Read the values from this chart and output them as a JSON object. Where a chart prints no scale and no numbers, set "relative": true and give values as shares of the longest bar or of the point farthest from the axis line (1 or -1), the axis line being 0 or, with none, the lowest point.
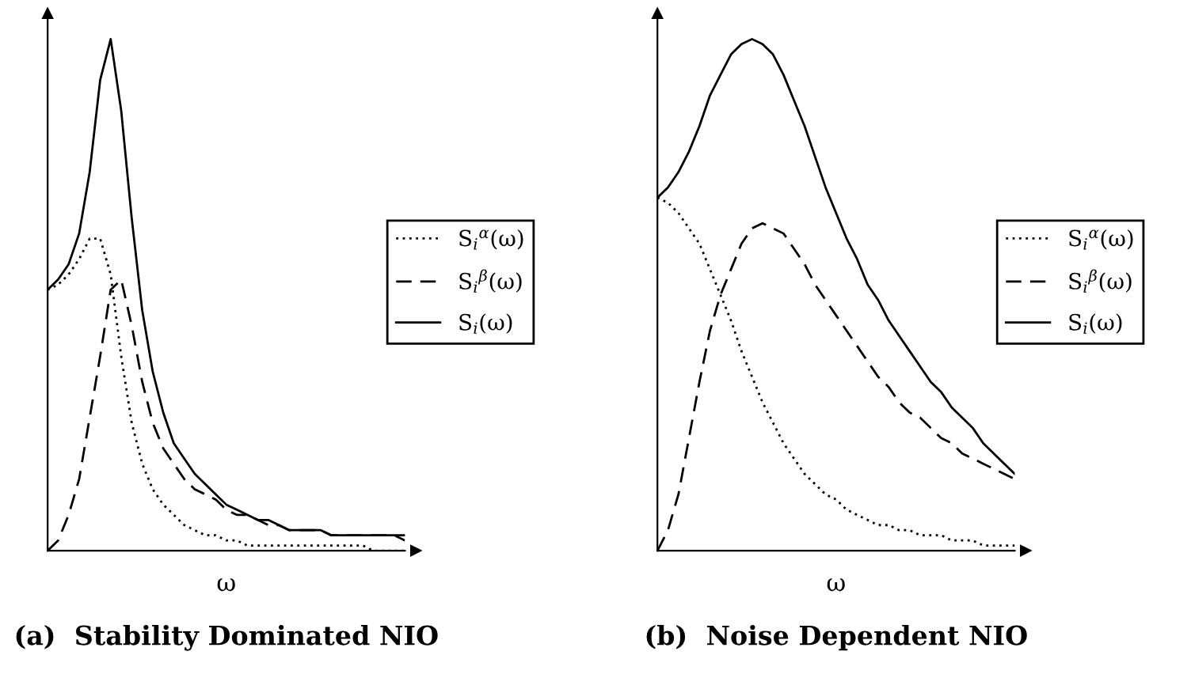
{
  "chart_data": [
    {
      "type": "line",
      "title": "(a)  Stability Dominated NIO",
      "xlabel": "ω",
      "relative": true,
      "tick_labels": false,
      "legend": "right",
      "marker": "none",
      "categories": [
        null,
        null,
        null,
        null,
        null,
        null,
        null,
        null,
        null,
        null,
        null,
        null,
        null,
        null,
        null,
        null,
        null,
        null,
        null,
        null,
        null,
        null,
        null,
        null,
        null,
        null,
        null,
        null,
        null,
        null,
        null,
        null,
        null,
        null,
        null
      ],
      "series": [
        {
          "name": "S$_{i}$$^{α}$(ω)",
          "color": "#000000",
          "line_style": "dotted",
          "values": [
            0.51,
            0.52,
            0.54,
            0.57,
            0.61,
            0.61,
            0.54,
            0.38,
            0.25,
            0.17,
            0.12,
            0.09,
            0.07,
            0.05,
            0.04,
            0.03,
            0.03,
            0.02,
            0.02,
            0.01,
            0.01,
            0.01,
            0.01,
            0.01,
            0.01,
            0.01,
            0.01,
            0.01,
            0.01,
            0.01,
            0.01,
            0,
            0,
            0,
            0
          ]
        },
        {
          "name": "S$_{i}$$^{β}$(ω)",
          "color": "#000000",
          "line_style": "dashed",
          "values": [
            0,
            0.02,
            0.07,
            0.14,
            0.26,
            0.38,
            0.51,
            0.53,
            0.44,
            0.33,
            0.25,
            0.2,
            0.17,
            0.14,
            0.12,
            0.11,
            0.1,
            0.08,
            0.07,
            0.07,
            0.06,
            0.05,
            0.05,
            0.04,
            0.04,
            0.04,
            0.04,
            0.03,
            0.03,
            0.03,
            0.03,
            0.03,
            0.03,
            0.03,
            0.02
          ]
        },
        {
          "name": "S$_{i}$(ω)",
          "color": "#000000",
          "line_style": "solid",
          "values": [
            0.51,
            0.53,
            0.56,
            0.62,
            0.74,
            0.92,
            1,
            0.86,
            0.65,
            0.47,
            0.35,
            0.27,
            0.21,
            0.18,
            0.15,
            0.13,
            0.11,
            0.09,
            0.08,
            0.07,
            0.06,
            0.06,
            0.05,
            0.04,
            0.04,
            0.04,
            0.04,
            0.03,
            0.03,
            0.03,
            0.03,
            0.03,
            0.03,
            0.03,
            0.03
          ]
        }
      ]
    },
    {
      "type": "line",
      "title": "(b)  Noise Dependent NIO",
      "xlabel": "ω",
      "relative": true,
      "tick_labels": false,
      "legend": "right",
      "marker": "none",
      "categories": [
        null,
        null,
        null,
        null,
        null,
        null,
        null,
        null,
        null,
        null,
        null,
        null,
        null,
        null,
        null,
        null,
        null,
        null,
        null,
        null,
        null,
        null,
        null,
        null,
        null,
        null,
        null,
        null,
        null,
        null,
        null,
        null,
        null,
        null,
        null
      ],
      "series": [
        {
          "name": "S$_{i}$$^{α}$(ω)",
          "color": "#000000",
          "line_style": "dotted",
          "values": [
            0.69,
            0.68,
            0.66,
            0.63,
            0.6,
            0.55,
            0.5,
            0.45,
            0.39,
            0.34,
            0.29,
            0.25,
            0.21,
            0.18,
            0.15,
            0.13,
            0.11,
            0.1,
            0.08,
            0.07,
            0.06,
            0.05,
            0.05,
            0.04,
            0.04,
            0.03,
            0.03,
            0.03,
            0.02,
            0.02,
            0.02,
            0.01,
            0.01,
            0.01,
            0.01
          ]
        },
        {
          "name": "S$_{i}$$^{β}$(ω)",
          "color": "#000000",
          "line_style": "dashed",
          "values": [
            0,
            0.04,
            0.11,
            0.22,
            0.33,
            0.43,
            0.5,
            0.55,
            0.6,
            0.63,
            0.64,
            0.63,
            0.62,
            0.59,
            0.56,
            0.52,
            0.49,
            0.46,
            0.43,
            0.4,
            0.37,
            0.34,
            0.32,
            0.29,
            0.27,
            0.26,
            0.24,
            0.22,
            0.21,
            0.19,
            0.18,
            0.17,
            0.16,
            0.15,
            0.14
          ]
        },
        {
          "name": "S$_{i}$(ω)",
          "color": "#000000",
          "line_style": "solid",
          "values": [
            0.69,
            0.71,
            0.74,
            0.78,
            0.83,
            0.89,
            0.93,
            0.97,
            0.99,
            1,
            0.99,
            0.97,
            0.93,
            0.88,
            0.83,
            0.77,
            0.71,
            0.66,
            0.61,
            0.57,
            0.52,
            0.49,
            0.45,
            0.42,
            0.39,
            0.36,
            0.33,
            0.31,
            0.28,
            0.26,
            0.24,
            0.21,
            0.19,
            0.17,
            0.15
          ]
        }
      ]
    }
  ]
}
